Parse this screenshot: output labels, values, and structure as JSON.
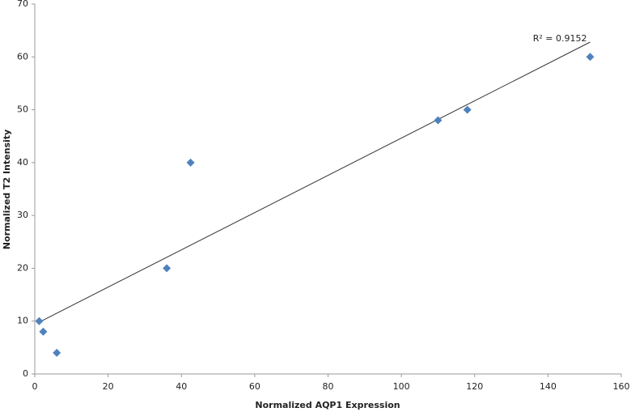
{
  "chart_data": {
    "type": "scatter",
    "x_label": "Normalized AQP1 Expression",
    "y_label": "Normalized T2 Intensity",
    "series": [
      {
        "color": "#4f81bd",
        "x": [
          1.2,
          2.3,
          6,
          36,
          42.5,
          110,
          118,
          151.5
        ],
        "values": [
          10,
          8,
          4,
          20,
          40,
          48,
          50,
          60
        ]
      }
    ],
    "trendline": {
      "color": "#333333",
      "x": [
        1.2,
        151.5
      ],
      "values": [
        9.8,
        62.8
      ],
      "label": "R² = 0.9152"
    },
    "xlim": [
      0,
      160
    ],
    "xticks": [
      0,
      20,
      40,
      60,
      80,
      100,
      120,
      140,
      160
    ],
    "ylim": [
      0,
      70
    ],
    "yticks": [
      0,
      10,
      20,
      30,
      40,
      50,
      60,
      70
    ],
    "grid": false
  }
}
